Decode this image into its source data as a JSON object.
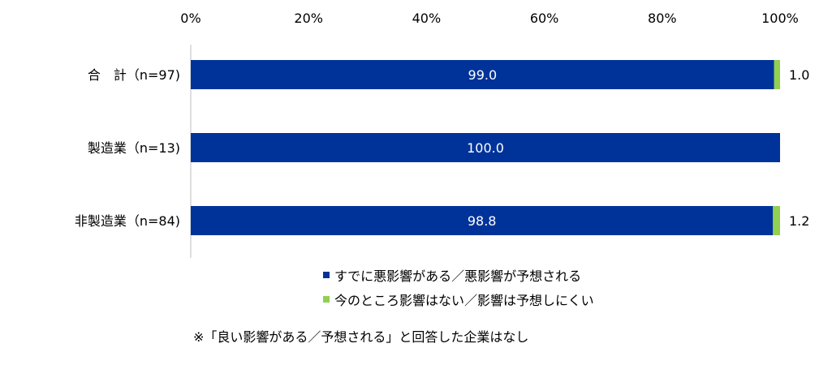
{
  "chart_data": {
    "type": "bar",
    "orientation": "horizontal",
    "stacked": true,
    "categories": [
      "合　計（n=97)",
      "製造業（n=13)",
      "非製造業（n=84)"
    ],
    "series": [
      {
        "name": "すでに悪影響がある／悪影響が予想される",
        "color": "#003399",
        "values": [
          99.0,
          100.0,
          98.8
        ],
        "labels": [
          "99.0",
          "100.0",
          "98.8"
        ]
      },
      {
        "name": "今のところ影響はない／影響は予想しにくい",
        "color": "#92D050",
        "values": [
          1.0,
          0,
          1.2
        ],
        "labels": [
          "1.0",
          "",
          "1.2"
        ]
      }
    ],
    "xlim": [
      0,
      100
    ],
    "xticks": [
      0,
      20,
      40,
      60,
      80,
      100
    ],
    "xtick_labels": [
      "0%",
      "20%",
      "40%",
      "60%",
      "80%",
      "100%"
    ],
    "legend_position": "bottom",
    "grid": false
  },
  "note": "※「良い影響がある／予想される」と回答した企業はなし"
}
